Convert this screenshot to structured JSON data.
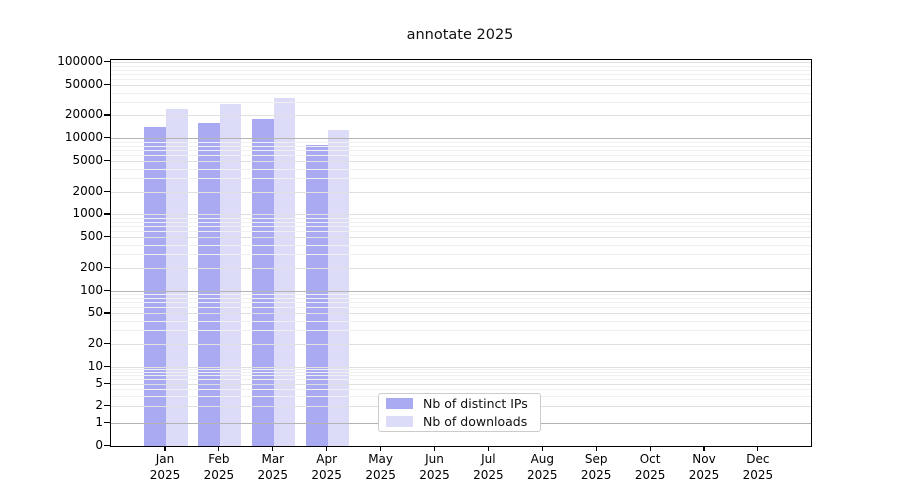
{
  "chart_data": {
    "type": "bar",
    "title": "annotate 2025",
    "categories": [
      "Jan 2025",
      "Feb 2025",
      "Mar 2025",
      "Apr 2025",
      "May 2025",
      "Jun 2025",
      "Jul 2025",
      "Aug 2025",
      "Sep 2025",
      "Oct 2025",
      "Nov 2025",
      "Dec 2025"
    ],
    "series": [
      {
        "name": "Nb of distinct IPs",
        "color": "#aaaaf2",
        "values": [
          14000,
          15800,
          18000,
          8200,
          null,
          null,
          null,
          null,
          null,
          null,
          null,
          null
        ]
      },
      {
        "name": "Nb of downloads",
        "color": "#dcdcf8",
        "values": [
          24400,
          28000,
          33600,
          12800,
          null,
          null,
          null,
          null,
          null,
          null,
          null,
          null
        ]
      }
    ],
    "yscale": "symlog",
    "ylim": [
      0,
      100000
    ],
    "yticks": [
      100000,
      50000,
      20000,
      10000,
      5000,
      2000,
      1000,
      500,
      200,
      100,
      50,
      20,
      10,
      5,
      2,
      1,
      0
    ],
    "xlabel": "",
    "ylabel": "",
    "grid": "horizontal major+minor",
    "legend_position": "lower center",
    "colors": {
      "major_grid_dark": "#b4b4b4",
      "major_grid": "#e0e0e0",
      "minor_grid": "#f0f0f0"
    }
  }
}
